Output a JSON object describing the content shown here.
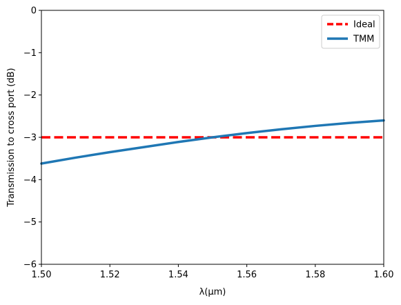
{
  "chart_data": {
    "type": "line",
    "title": "",
    "xlabel": "λ(μm)",
    "ylabel": "Transmission to cross port (dB)",
    "xlim": [
      1.5,
      1.6
    ],
    "ylim": [
      -6,
      0
    ],
    "x_ticks": [
      1.5,
      1.52,
      1.54,
      1.56,
      1.58,
      1.6
    ],
    "x_tick_labels": [
      "1.50",
      "1.52",
      "1.54",
      "1.56",
      "1.58",
      "1.60"
    ],
    "y_ticks": [
      0,
      -1,
      -2,
      -3,
      -4,
      -5,
      -6
    ],
    "y_tick_labels": [
      "0",
      "−1",
      "−2",
      "−3",
      "−4",
      "−5",
      "−6"
    ],
    "grid": false,
    "legend_position": "top-right",
    "series": [
      {
        "name": "Ideal",
        "color": "#ff0000",
        "style": "dashed",
        "x": [
          1.5,
          1.6
        ],
        "y": [
          -3.0,
          -3.0
        ]
      },
      {
        "name": "TMM",
        "color": "#1f77b4",
        "style": "solid",
        "x": [
          1.5,
          1.51,
          1.52,
          1.53,
          1.54,
          1.55,
          1.56,
          1.57,
          1.58,
          1.59,
          1.6
        ],
        "y": [
          -3.62,
          -3.48,
          -3.35,
          -3.23,
          -3.11,
          -3.0,
          -2.9,
          -2.81,
          -2.73,
          -2.66,
          -2.6
        ]
      }
    ]
  }
}
